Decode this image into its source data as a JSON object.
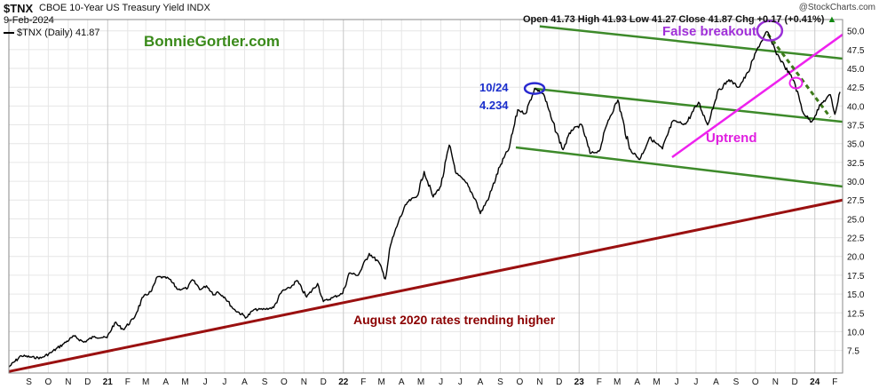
{
  "header": {
    "ticker": "$TNX",
    "description": "CBOE 10-Year US Treasury Yield INDX",
    "date": "9-Feb-2024",
    "copyright": "@StockCharts.com",
    "legend": "$TNX (Daily) 41.87",
    "ohlc": {
      "open_label": "Open",
      "open": "41.73",
      "high_label": "High",
      "high": "41.93",
      "low_label": "Low",
      "low": "41.27",
      "close_label": "Close",
      "close": "41.87",
      "chg_label": "Chg",
      "chg": "+0.17 (+0.41%)",
      "chg_icon": "triangle-up-icon"
    }
  },
  "annotations": {
    "website": "BonnieGortler.com",
    "peak_date": "10/24",
    "peak_value": "4.234",
    "false_breakout": "False breakout",
    "uptrend": "Uptrend",
    "august_2020": "August 2020 rates trending higher"
  },
  "colors": {
    "price": "#000000",
    "channel": "#3d8a2a",
    "uptrend": "#ee22ee",
    "long_trend": "#9a1010",
    "circle_blue": "#2a2ad0",
    "circle_purple": "#9a30d8",
    "circle_pink": "#ee22ee",
    "dashed_trend": "#3d7a1a",
    "grid": "#e6e6e6"
  },
  "chart_data": {
    "type": "line",
    "series": [
      {
        "name": "$TNX (Daily)",
        "points": [
          [
            "2020-08-01",
            5.3
          ],
          [
            "2020-08-20",
            6.8
          ],
          [
            "2020-09-05",
            6.6
          ],
          [
            "2020-09-20",
            6.5
          ],
          [
            "2020-10-05",
            7.2
          ],
          [
            "2020-10-25",
            8.4
          ],
          [
            "2020-11-10",
            9.4
          ],
          [
            "2020-11-25",
            8.6
          ],
          [
            "2020-12-10",
            9.3
          ],
          [
            "2020-12-31",
            9.2
          ],
          [
            "2021-01-12",
            11.2
          ],
          [
            "2021-01-25",
            10.3
          ],
          [
            "2021-02-10",
            11.7
          ],
          [
            "2021-02-25",
            14.6
          ],
          [
            "2021-03-10",
            15.4
          ],
          [
            "2021-03-19",
            17.3
          ],
          [
            "2021-04-05",
            17.1
          ],
          [
            "2021-04-20",
            15.6
          ],
          [
            "2021-05-05",
            15.8
          ],
          [
            "2021-05-12",
            16.9
          ],
          [
            "2021-05-25",
            15.6
          ],
          [
            "2021-06-03",
            16.1
          ],
          [
            "2021-06-15",
            14.9
          ],
          [
            "2021-06-20",
            15.3
          ],
          [
            "2021-07-01",
            14.6
          ],
          [
            "2021-07-15",
            13.0
          ],
          [
            "2021-08-04",
            11.9
          ],
          [
            "2021-08-15",
            12.9
          ],
          [
            "2021-09-01",
            13.0
          ],
          [
            "2021-09-15",
            13.2
          ],
          [
            "2021-09-28",
            15.4
          ],
          [
            "2021-10-10",
            15.8
          ],
          [
            "2021-10-21",
            16.8
          ],
          [
            "2021-11-05",
            14.6
          ],
          [
            "2021-11-22",
            16.4
          ],
          [
            "2021-12-01",
            14.0
          ],
          [
            "2021-12-15",
            14.5
          ],
          [
            "2021-12-31",
            15.1
          ],
          [
            "2022-01-10",
            17.8
          ],
          [
            "2022-01-24",
            17.5
          ],
          [
            "2022-02-10",
            20.4
          ],
          [
            "2022-02-25",
            19.2
          ],
          [
            "2022-03-07",
            17.0
          ],
          [
            "2022-03-15",
            21.5
          ],
          [
            "2022-03-28",
            24.8
          ],
          [
            "2022-04-10",
            27.2
          ],
          [
            "2022-04-25",
            28.0
          ],
          [
            "2022-05-06",
            31.3
          ],
          [
            "2022-05-20",
            27.9
          ],
          [
            "2022-06-01",
            29.4
          ],
          [
            "2022-06-14",
            34.8
          ],
          [
            "2022-06-25",
            31.0
          ],
          [
            "2022-07-10",
            29.8
          ],
          [
            "2022-07-25",
            27.5
          ],
          [
            "2022-08-01",
            25.7
          ],
          [
            "2022-08-15",
            28.0
          ],
          [
            "2022-08-31",
            31.9
          ],
          [
            "2022-09-15",
            34.5
          ],
          [
            "2022-09-28",
            39.5
          ],
          [
            "2022-10-10",
            39.0
          ],
          [
            "2022-10-24",
            42.34
          ],
          [
            "2022-11-07",
            41.6
          ],
          [
            "2022-11-20",
            38.1
          ],
          [
            "2022-12-07",
            34.2
          ],
          [
            "2022-12-20",
            36.8
          ],
          [
            "2023-01-05",
            37.5
          ],
          [
            "2023-01-18",
            33.7
          ],
          [
            "2023-02-01",
            34.0
          ],
          [
            "2023-02-15",
            38.1
          ],
          [
            "2023-03-02",
            40.8
          ],
          [
            "2023-03-20",
            34.3
          ],
          [
            "2023-04-05",
            32.9
          ],
          [
            "2023-04-20",
            35.8
          ],
          [
            "2023-05-10",
            34.3
          ],
          [
            "2023-05-26",
            38.0
          ],
          [
            "2023-06-15",
            37.6
          ],
          [
            "2023-07-05",
            40.5
          ],
          [
            "2023-07-19",
            37.5
          ],
          [
            "2023-08-03",
            41.8
          ],
          [
            "2023-08-21",
            43.5
          ],
          [
            "2023-09-05",
            42.5
          ],
          [
            "2023-09-20",
            44.5
          ],
          [
            "2023-10-05",
            47.8
          ],
          [
            "2023-10-19",
            49.9
          ],
          [
            "2023-11-01",
            47.3
          ],
          [
            "2023-11-15",
            45.3
          ],
          [
            "2023-11-30",
            43.3
          ],
          [
            "2023-12-14",
            39.1
          ],
          [
            "2023-12-27",
            37.9
          ],
          [
            "2024-01-10",
            40.2
          ],
          [
            "2024-01-25",
            41.5
          ],
          [
            "2024-02-01",
            38.9
          ],
          [
            "2024-02-09",
            41.87
          ]
        ]
      }
    ],
    "x_ticks": [
      [
        "2020-09-01",
        "S"
      ],
      [
        "2020-10-01",
        "O"
      ],
      [
        "2020-11-01",
        "N"
      ],
      [
        "2020-12-01",
        "D"
      ],
      [
        "2021-01-01",
        "21"
      ],
      [
        "2021-02-01",
        "F"
      ],
      [
        "2021-03-01",
        "M"
      ],
      [
        "2021-04-01",
        "A"
      ],
      [
        "2021-05-01",
        "M"
      ],
      [
        "2021-06-01",
        "J"
      ],
      [
        "2021-07-01",
        "J"
      ],
      [
        "2021-08-01",
        "A"
      ],
      [
        "2021-09-01",
        "S"
      ],
      [
        "2021-10-01",
        "O"
      ],
      [
        "2021-11-01",
        "N"
      ],
      [
        "2021-12-01",
        "D"
      ],
      [
        "2022-01-01",
        "22"
      ],
      [
        "2022-02-01",
        "F"
      ],
      [
        "2022-03-01",
        "M"
      ],
      [
        "2022-04-01",
        "A"
      ],
      [
        "2022-05-01",
        "M"
      ],
      [
        "2022-06-01",
        "J"
      ],
      [
        "2022-07-01",
        "J"
      ],
      [
        "2022-08-01",
        "A"
      ],
      [
        "2022-09-01",
        "S"
      ],
      [
        "2022-10-01",
        "O"
      ],
      [
        "2022-11-01",
        "N"
      ],
      [
        "2022-12-01",
        "D"
      ],
      [
        "2023-01-01",
        "23"
      ],
      [
        "2023-02-01",
        "F"
      ],
      [
        "2023-03-01",
        "M"
      ],
      [
        "2023-04-01",
        "A"
      ],
      [
        "2023-05-01",
        "M"
      ],
      [
        "2023-06-01",
        "J"
      ],
      [
        "2023-07-01",
        "J"
      ],
      [
        "2023-08-01",
        "A"
      ],
      [
        "2023-09-01",
        "S"
      ],
      [
        "2023-10-01",
        "O"
      ],
      [
        "2023-11-01",
        "N"
      ],
      [
        "2023-12-01",
        "D"
      ],
      [
        "2024-01-01",
        "24"
      ],
      [
        "2024-02-01",
        "F"
      ]
    ],
    "y_ticks": [
      "7.5",
      "10.0",
      "12.5",
      "15.0",
      "17.5",
      "20.0",
      "22.5",
      "25.0",
      "27.5",
      "30.0",
      "32.5",
      "35.0",
      "37.5",
      "40.0",
      "42.5",
      "45.0",
      "47.5",
      "50.0"
    ],
    "x_range": [
      "2020-08-01",
      "2024-02-13"
    ],
    "ylim": [
      4.5,
      51.5
    ],
    "grid": true,
    "trendlines": [
      {
        "name": "channel-upper-outer",
        "from": [
          "2022-11-01",
          50.6
        ],
        "to": [
          "2024-02-13",
          46.3
        ]
      },
      {
        "name": "channel-upper",
        "from": [
          "2022-10-24",
          42.3
        ],
        "to": [
          "2024-02-13",
          37.9
        ]
      },
      {
        "name": "channel-lower",
        "from": [
          "2022-09-25",
          34.5
        ],
        "to": [
          "2024-02-13",
          29.3
        ]
      },
      {
        "name": "uptrend",
        "from": [
          "2023-05-25",
          33.2
        ],
        "to": [
          "2024-02-13",
          49.5
        ]
      },
      {
        "name": "august-2020-trend",
        "from": [
          "2020-08-01",
          4.7
        ],
        "to": [
          "2024-02-13",
          27.5
        ]
      },
      {
        "name": "false-breakout-dashed",
        "from": [
          "2023-10-20",
          49.6
        ],
        "to": [
          "2024-01-25",
          38.5
        ]
      }
    ]
  }
}
